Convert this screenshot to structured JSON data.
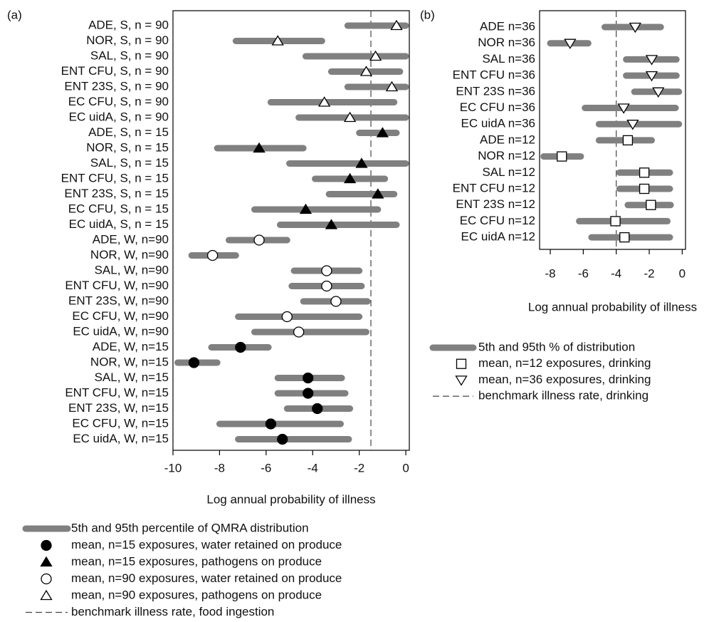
{
  "chart_data": [
    {
      "type": "range",
      "panel_label": "(a)",
      "categories": [
        "ADE, S, n = 90",
        "NOR, S, n = 90",
        "SAL, S, n = 90",
        "ENT CFU, S, n = 90",
        "ENT 23S, S, n = 90",
        "EC CFU, S, n = 90",
        "EC uidA, S, n = 90",
        "ADE, S, n = 15",
        "NOR, S, n = 15",
        "SAL, S, n = 15",
        "ENT CFU, S, n = 15",
        "ENT 23S, S, n = 15",
        "EC CFU, S, n = 15",
        "EC uidA, S, n = 15",
        "ADE, W, n=90",
        "NOR, W, n=90",
        "SAL, W, n=90",
        "ENT CFU, W, n=90",
        "ENT 23S, W, n=90",
        "EC CFU, W, n=90",
        "EC uidA, W, n=90",
        "ADE, W, n=15",
        "NOR, W, n=15",
        "SAL, W, n=15",
        "ENT CFU, W, n=15",
        "ENT 23S, W, n=15",
        "EC CFU, W, n=15",
        "EC uidA, W, n=15"
      ],
      "ranges": {
        "name": "5th and 95th percentile of QMRA distribution",
        "color": "#808080",
        "low": [
          -2.5,
          -7.3,
          -4.3,
          -3.2,
          -2.5,
          -5.8,
          -4.6,
          -2.0,
          -8.1,
          -5.0,
          -3.9,
          -3.3,
          -6.5,
          -5.4,
          -7.6,
          -9.2,
          -4.8,
          -4.9,
          -4.4,
          -7.2,
          -6.5,
          -8.35,
          -9.8,
          -5.5,
          -5.5,
          -5.1,
          -8.0,
          -7.2
        ],
        "high": [
          0,
          -3.6,
          0,
          -0.25,
          0,
          -0.5,
          0,
          -0.4,
          -4.4,
          0,
          -0.9,
          -0.5,
          -1.2,
          -0.4,
          -5.1,
          -7.3,
          -2.0,
          -1.9,
          -1.65,
          -2.0,
          -1.7,
          -5.9,
          -8.1,
          -2.75,
          -2.6,
          -2.4,
          -2.8,
          -2.45
        ]
      },
      "series": [
        {
          "name": "mean, n=15 exposures, water retained on produce",
          "marker": "circle",
          "filled": true,
          "values": [
            null,
            null,
            null,
            null,
            null,
            null,
            null,
            null,
            null,
            null,
            null,
            null,
            null,
            null,
            null,
            null,
            null,
            null,
            null,
            null,
            null,
            -7.1,
            -9.1,
            -4.2,
            -4.2,
            -3.8,
            -5.8,
            -5.3
          ]
        },
        {
          "name": "mean, n=15 exposures, pathogens on produce",
          "marker": "triangle-up",
          "filled": true,
          "values": [
            null,
            null,
            null,
            null,
            null,
            null,
            null,
            -1.0,
            -6.3,
            -1.9,
            -2.4,
            -1.2,
            -4.3,
            -3.2,
            null,
            null,
            null,
            null,
            null,
            null,
            null,
            null,
            null,
            null,
            null,
            null,
            null,
            null
          ]
        },
        {
          "name": "mean, n=90 exposures, water retained on produce",
          "marker": "circle",
          "filled": false,
          "values": [
            null,
            null,
            null,
            null,
            null,
            null,
            null,
            null,
            null,
            null,
            null,
            null,
            null,
            null,
            -6.3,
            -8.3,
            -3.4,
            -3.4,
            -3.0,
            -5.1,
            -4.6,
            null,
            null,
            null,
            null,
            null,
            null,
            null
          ]
        },
        {
          "name": "mean, n=90 exposures, pathogens on produce",
          "marker": "triangle-up",
          "filled": false,
          "values": [
            -0.4,
            -5.5,
            -1.3,
            -1.7,
            -0.6,
            -3.5,
            -2.4,
            null,
            null,
            null,
            null,
            null,
            null,
            null,
            null,
            null,
            null,
            null,
            null,
            null,
            null,
            null,
            null,
            null,
            null,
            null,
            null,
            null
          ]
        }
      ],
      "benchmark": {
        "name": "benchmark illness rate, food ingestion",
        "value": -1.5
      },
      "xlim": [
        -10,
        0.15
      ],
      "xticks": [
        -10,
        -8,
        -6,
        -4,
        -2,
        0
      ],
      "xlabel": "Log annual probability of illness"
    },
    {
      "type": "range",
      "panel_label": "(b)",
      "categories": [
        "ADE n=36",
        "NOR n=36",
        "SAL n=36",
        "ENT CFU n=36",
        "ENT 23S n=36",
        "EC CFU n=36",
        "EC uidA n=36",
        "ADE n=12",
        "NOR n=12",
        "SAL n=12",
        "ENT CFU n=12",
        "ENT 23S n=12",
        "EC CFU n=12",
        "EC uidA n=12"
      ],
      "ranges": {
        "name": "5th and 95th % of distribution",
        "color": "#808080",
        "low": [
          -4.7,
          -8.0,
          -3.4,
          -3.4,
          -2.9,
          -5.9,
          -5.05,
          -5.05,
          -8.4,
          -3.8,
          -3.8,
          -3.3,
          -6.25,
          -5.5
        ],
        "high": [
          -1.3,
          -5.7,
          -0.35,
          -0.35,
          -0.2,
          -0.4,
          -0.2,
          -1.85,
          -6.15,
          -0.75,
          -0.75,
          -0.7,
          -0.9,
          -0.75
        ]
      },
      "series": [
        {
          "name": "mean, n=12 exposures, drinking",
          "marker": "square",
          "filled": false,
          "values": [
            null,
            null,
            null,
            null,
            null,
            null,
            null,
            -3.3,
            -7.3,
            -2.3,
            -2.3,
            -1.9,
            -4.05,
            -3.5
          ]
        },
        {
          "name": "mean, n=36 exposures, drinking",
          "marker": "triangle-down",
          "filled": false,
          "values": [
            -2.85,
            -6.8,
            -1.85,
            -1.85,
            -1.45,
            -3.55,
            -3.0,
            null,
            null,
            null,
            null,
            null,
            null,
            null
          ]
        }
      ],
      "benchmark": {
        "name": "benchmark illness rate, drinking",
        "value": -4
      },
      "xlim": [
        -8.65,
        0.2
      ],
      "xticks": [
        -8,
        -6,
        -4,
        -2,
        0
      ],
      "xlabel": "Log annual probability of illness"
    }
  ]
}
